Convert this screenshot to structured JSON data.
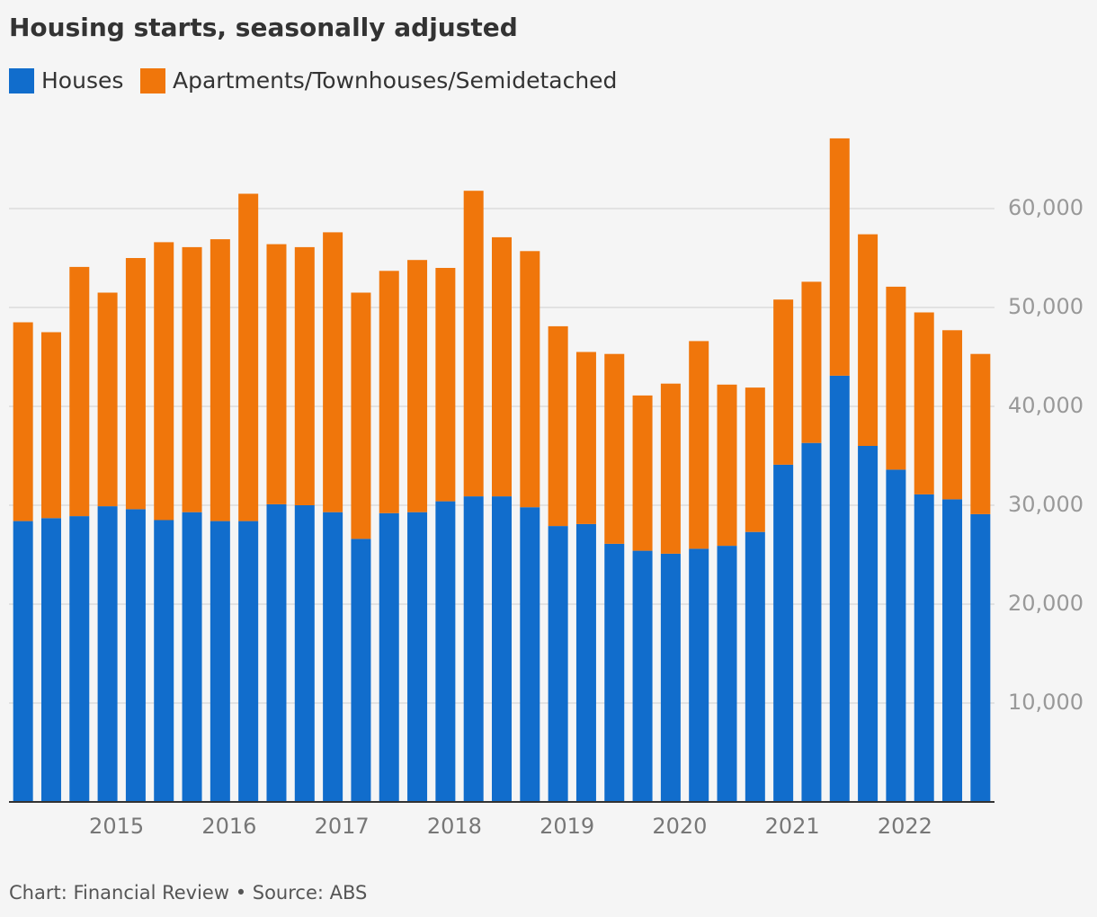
{
  "chart_data": {
    "type": "stacked_bar",
    "title": "Housing starts, seasonally adjusted",
    "source": "Chart: Financial Review • Source: ABS",
    "categories": [
      null,
      null,
      null,
      "2015",
      null,
      null,
      null,
      "2016",
      null,
      null,
      null,
      "2017",
      null,
      null,
      null,
      "2018",
      null,
      null,
      null,
      "2019",
      null,
      null,
      null,
      "2020",
      null,
      null,
      null,
      "2021",
      null,
      null,
      null,
      "2022",
      null,
      null,
      null
    ],
    "series": [
      {
        "name": "Houses",
        "color": "#116dcc",
        "values": [
          28400,
          28700,
          28900,
          29900,
          29600,
          28500,
          29300,
          28400,
          28400,
          30100,
          30000,
          29300,
          26600,
          29200,
          29300,
          30400,
          30900,
          30900,
          29800,
          27900,
          28100,
          26100,
          25400,
          25100,
          25600,
          25900,
          27300,
          34100,
          36300,
          43100,
          36000,
          33600,
          31100,
          30600,
          29100
        ]
      },
      {
        "name": "Apartments/Townhouses/Semidetached",
        "color": "#f0760b",
        "values": [
          20100,
          18800,
          25200,
          21600,
          25400,
          28100,
          26800,
          28500,
          33100,
          26300,
          26100,
          28300,
          24900,
          24500,
          25500,
          23600,
          30900,
          26200,
          25900,
          20200,
          17400,
          19200,
          15700,
          17200,
          21000,
          16300,
          14600,
          16700,
          16300,
          24000,
          21400,
          18500,
          18400,
          17100,
          16200
        ]
      }
    ],
    "ylim": [
      0,
      68000
    ],
    "yticks": [
      {
        "value": 10000,
        "label": "10,000"
      },
      {
        "value": 20000,
        "label": "20,000"
      },
      {
        "value": 30000,
        "label": "30,000"
      },
      {
        "value": 40000,
        "label": "40,000"
      },
      {
        "value": 50000,
        "label": "50,000"
      },
      {
        "value": 60000,
        "label": "60,000"
      }
    ],
    "grid": true
  }
}
